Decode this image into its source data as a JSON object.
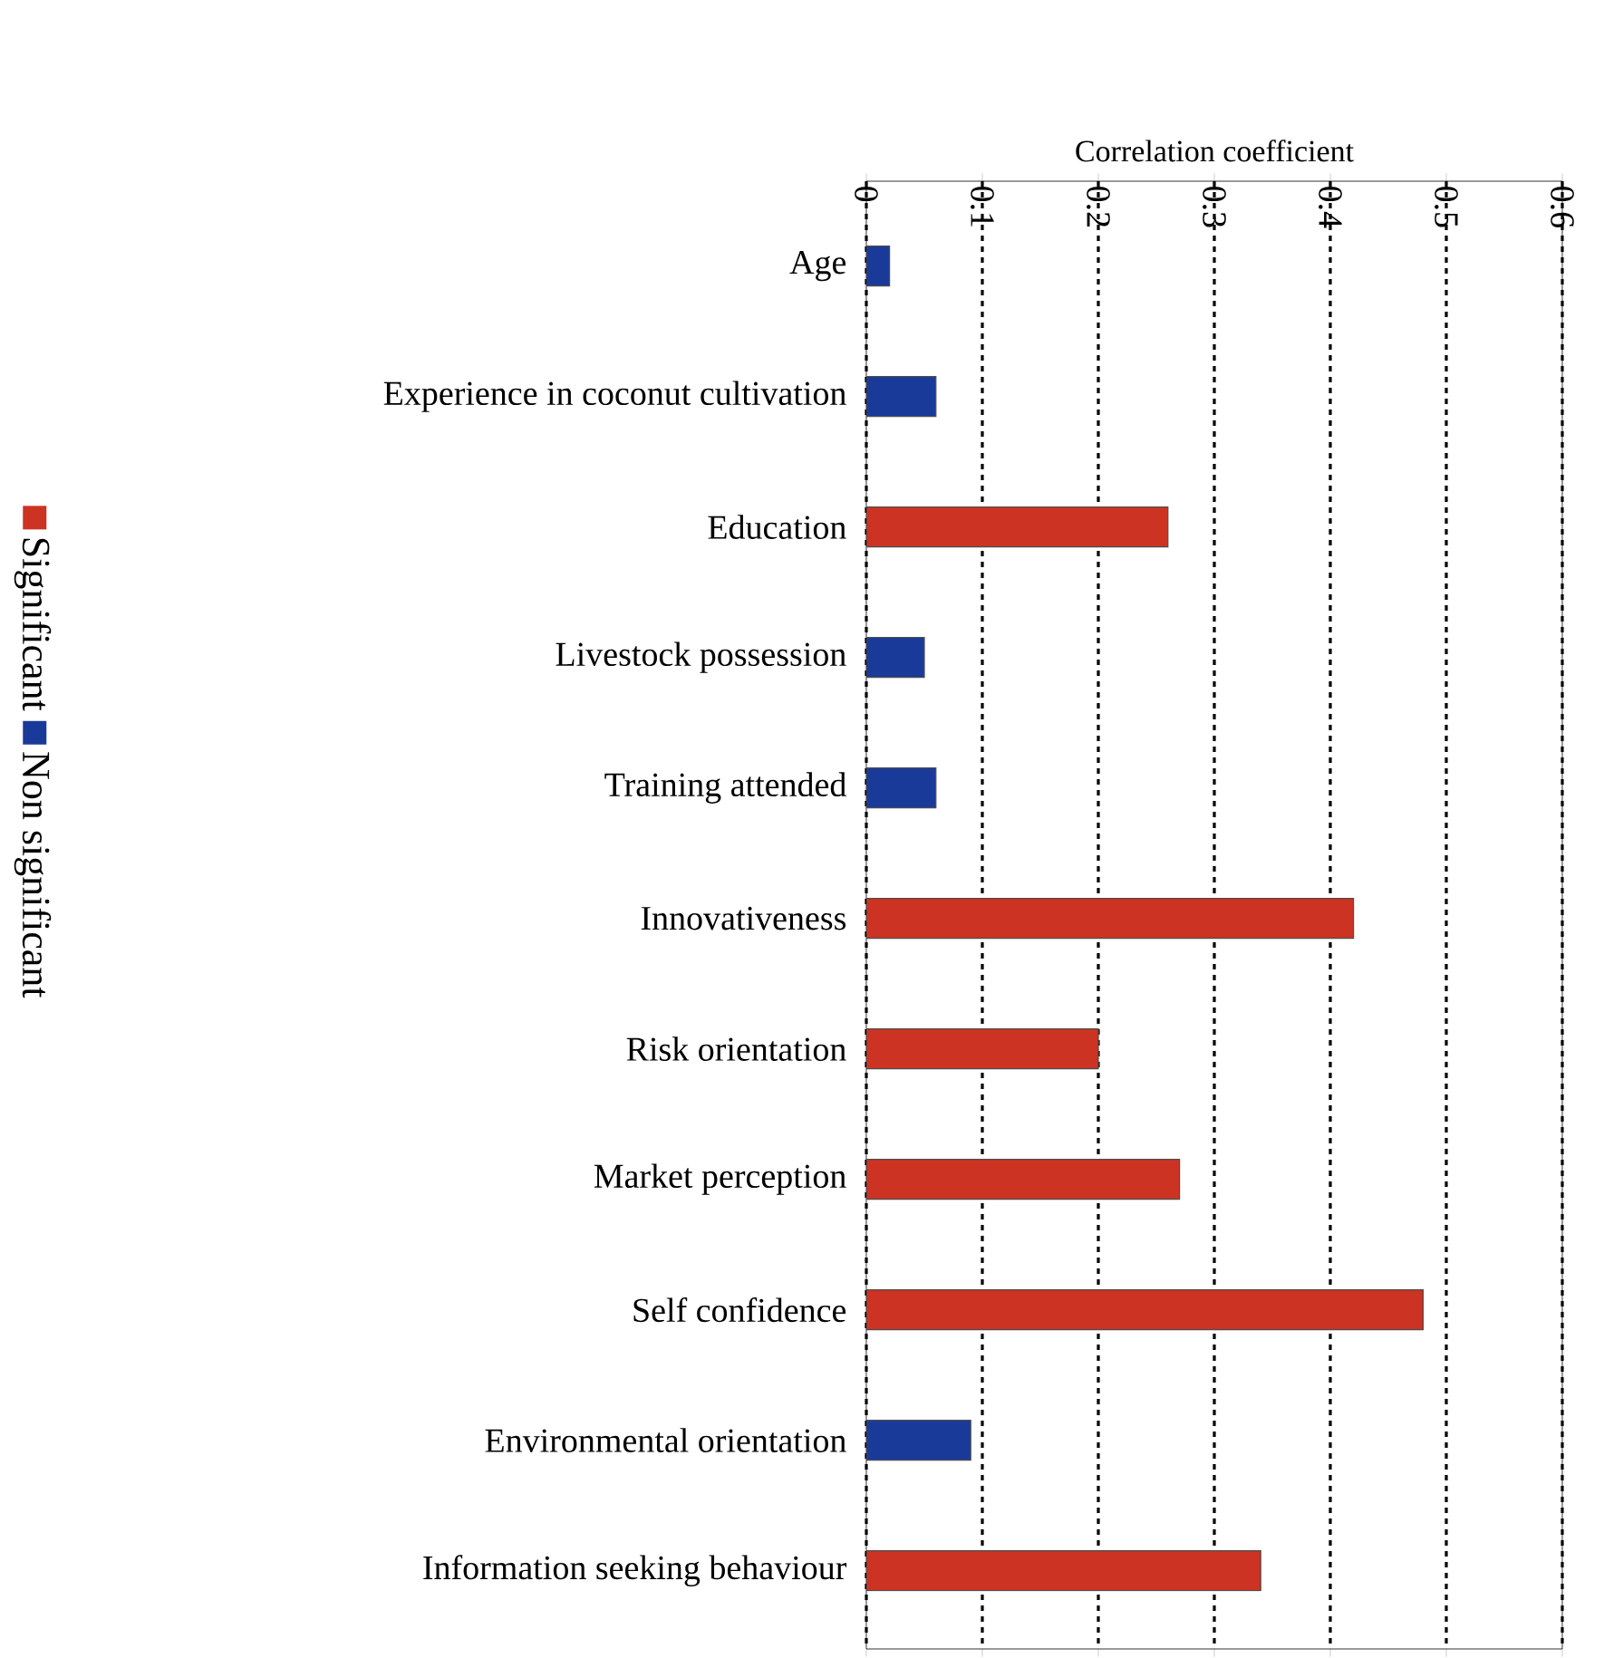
{
  "chart_data": {
    "type": "bar",
    "orientation": "horizontal",
    "xlabel": "Correlation coefficient",
    "categories": [
      "Age",
      "Experience in coconut cultivation",
      "Education",
      "Livestock possession",
      "Training attended",
      "Innovativeness",
      "Risk orientation",
      "Market perception",
      "Self confidence",
      "Environmental orientation",
      "Information seeking behaviour"
    ],
    "series": [
      {
        "name": "Significant",
        "color": "#cc3322",
        "values": [
          null,
          null,
          0.26,
          null,
          null,
          0.42,
          0.2,
          0.27,
          0.48,
          null,
          0.34
        ]
      },
      {
        "name": "Non significant",
        "color": "#1a3a9a",
        "values": [
          0.02,
          0.06,
          null,
          0.05,
          0.06,
          null,
          null,
          null,
          null,
          0.09,
          null
        ]
      }
    ],
    "xlim": [
      0,
      0.6
    ],
    "xticks": [
      0,
      0.1,
      0.2,
      0.3,
      0.4,
      0.5,
      0.6
    ],
    "grid": "x",
    "legend": "left"
  }
}
